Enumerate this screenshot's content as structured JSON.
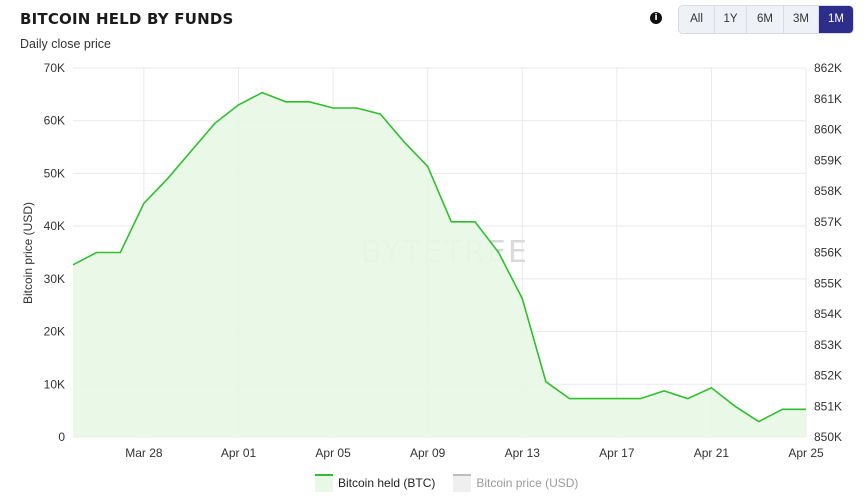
{
  "header": {
    "title": "BITCOIN HELD BY FUNDS",
    "subtitle": "Daily close price",
    "info_icon": "info-icon"
  },
  "range_buttons": [
    {
      "label": "All",
      "active": false
    },
    {
      "label": "1Y",
      "active": false
    },
    {
      "label": "6M",
      "active": false
    },
    {
      "label": "3M",
      "active": false
    },
    {
      "label": "1M",
      "active": true
    }
  ],
  "watermark": "BYTETREE",
  "colors": {
    "btc_line": "#2fbf2f",
    "btc_fill": "#e8f7e6",
    "active_button": "#2d2e8c",
    "grid": "#e9e9e9"
  },
  "legend": [
    {
      "label": "Bitcoin held (BTC)",
      "active": true
    },
    {
      "label": "Bitcoin price (USD)",
      "active": false
    }
  ],
  "chart_data": {
    "type": "area",
    "title": "BITCOIN HELD BY FUNDS",
    "subtitle": "Daily close price",
    "x_ticks": [
      "Mar 28",
      "Apr 01",
      "Apr 05",
      "Apr 09",
      "Apr 13",
      "Apr 17",
      "Apr 21",
      "Apr 25"
    ],
    "y_left": {
      "label": "Bitcoin price (USD)",
      "ticks": [
        "0",
        "10K",
        "20K",
        "30K",
        "40K",
        "50K",
        "60K",
        "70K"
      ],
      "range": [
        0,
        70000
      ]
    },
    "y_right": {
      "ticks": [
        "850K",
        "851K",
        "852K",
        "853K",
        "854K",
        "855K",
        "856K",
        "857K",
        "858K",
        "859K",
        "860K",
        "861K",
        "862K"
      ],
      "range": [
        850000,
        862000
      ]
    },
    "grid": true,
    "legend_position": "bottom",
    "series": [
      {
        "name": "Bitcoin held (BTC)",
        "axis": "right",
        "points": [
          [
            "2024-03-25",
            855.6
          ],
          [
            "2024-03-26",
            856.0
          ],
          [
            "2024-03-27",
            856.0
          ],
          [
            "2024-03-28",
            857.6
          ],
          [
            "2024-03-29",
            858.4
          ],
          [
            "2024-03-30",
            859.3
          ],
          [
            "2024-03-31",
            860.2
          ],
          [
            "2024-04-01",
            860.8
          ],
          [
            "2024-04-02",
            861.2
          ],
          [
            "2024-04-03",
            860.9
          ],
          [
            "2024-04-04",
            860.9
          ],
          [
            "2024-04-05",
            860.7
          ],
          [
            "2024-04-06",
            860.7
          ],
          [
            "2024-04-07",
            860.5
          ],
          [
            "2024-04-08",
            859.6
          ],
          [
            "2024-04-09",
            858.8
          ],
          [
            "2024-04-10",
            857.0
          ],
          [
            "2024-04-11",
            857.0
          ],
          [
            "2024-04-12",
            856.0
          ],
          [
            "2024-04-13",
            854.5
          ],
          [
            "2024-04-14",
            851.8
          ],
          [
            "2024-04-15",
            851.25
          ],
          [
            "2024-04-16",
            851.25
          ],
          [
            "2024-04-17",
            851.25
          ],
          [
            "2024-04-18",
            851.25
          ],
          [
            "2024-04-19",
            851.5
          ],
          [
            "2024-04-20",
            851.25
          ],
          [
            "2024-04-21",
            851.6
          ],
          [
            "2024-04-22",
            851.0
          ],
          [
            "2024-04-23",
            850.5
          ],
          [
            "2024-04-24",
            850.9
          ],
          [
            "2024-04-25",
            850.9
          ]
        ]
      }
    ]
  }
}
